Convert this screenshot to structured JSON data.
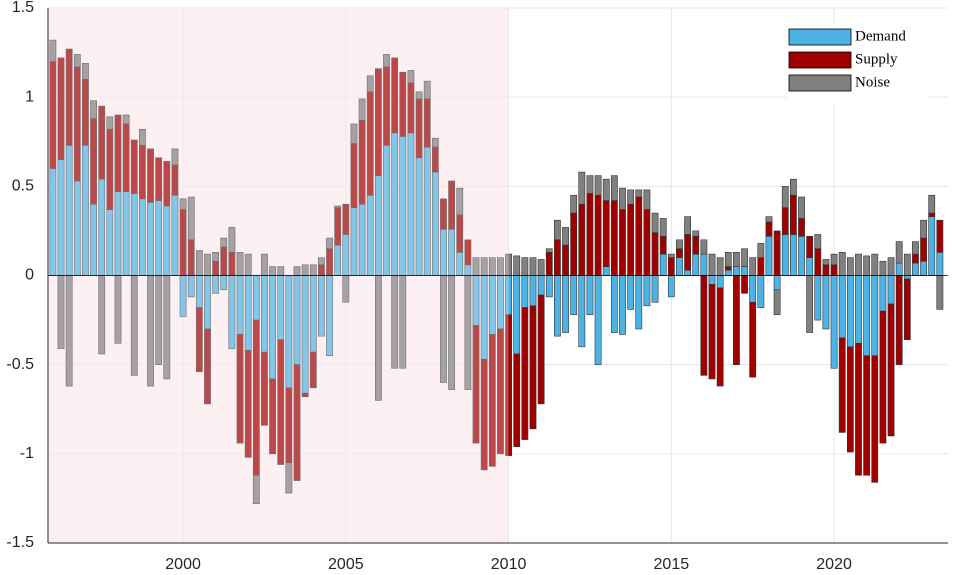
{
  "chart_data": {
    "type": "stacked_bar",
    "x": [
      1996,
      1996.25,
      1996.5,
      1996.75,
      1997,
      1997.25,
      1997.5,
      1997.75,
      1998,
      1998.25,
      1998.5,
      1998.75,
      1999,
      1999.25,
      1999.5,
      1999.75,
      2000,
      2000.25,
      2000.5,
      2000.75,
      2001,
      2001.25,
      2001.5,
      2001.75,
      2002,
      2002.25,
      2002.5,
      2002.75,
      2003,
      2003.25,
      2003.5,
      2003.75,
      2004,
      2004.25,
      2004.5,
      2004.75,
      2005,
      2005.25,
      2005.5,
      2005.75,
      2006,
      2006.25,
      2006.5,
      2006.75,
      2007,
      2007.25,
      2007.5,
      2007.75,
      2008,
      2008.25,
      2008.5,
      2008.75,
      2009,
      2009.25,
      2009.5,
      2009.75,
      2010,
      2010.25,
      2010.5,
      2010.75,
      2011,
      2011.25,
      2011.5,
      2011.75,
      2012,
      2012.25,
      2012.5,
      2012.75,
      2013,
      2013.25,
      2013.5,
      2013.75,
      2014,
      2014.25,
      2014.5,
      2014.75,
      2015,
      2015.25,
      2015.5,
      2015.75,
      2016,
      2016.25,
      2016.5,
      2016.75,
      2017,
      2017.25,
      2017.5,
      2017.75,
      2018,
      2018.25,
      2018.5,
      2018.75,
      2019,
      2019.25,
      2019.5,
      2019.75,
      2020,
      2020.25,
      2020.5,
      2020.75,
      2021,
      2021.25,
      2021.5,
      2021.75,
      2022,
      2022.25,
      2022.5,
      2022.75,
      2023,
      2023.25
    ],
    "series": [
      {
        "name": "Demand",
        "color": "#4db3e6",
        "values": [
          0.6,
          0.65,
          0.73,
          0.53,
          0.73,
          0.4,
          0.54,
          0.37,
          0.47,
          0.47,
          0.46,
          0.43,
          0.41,
          0.42,
          0.39,
          0.45,
          -0.23,
          -0.12,
          -0.18,
          -0.3,
          -0.1,
          -0.08,
          -0.41,
          -0.33,
          -0.42,
          -0.25,
          -0.43,
          -0.58,
          -0.36,
          -0.63,
          -0.5,
          -0.66,
          -0.43,
          -0.34,
          -0.45,
          0.17,
          0.23,
          0.38,
          0.4,
          0.45,
          0.56,
          0.73,
          0.8,
          0.78,
          0.8,
          0.66,
          0.72,
          0.58,
          0.26,
          0.26,
          0.13,
          0.06,
          -0.28,
          -0.47,
          -0.33,
          -0.3,
          -0.22,
          -0.44,
          -0.18,
          -0.17,
          -0.11,
          -0.12,
          -0.34,
          -0.32,
          -0.22,
          -0.4,
          -0.22,
          -0.5,
          0.05,
          -0.32,
          -0.33,
          -0.19,
          -0.3,
          -0.17,
          -0.15,
          0.12,
          -0.12,
          0.1,
          0.03,
          0.12,
          0.12,
          -0.05,
          -0.07,
          0.03,
          0.05,
          0.05,
          -0.15,
          -0.18,
          0.22,
          -0.08,
          0.23,
          0.23,
          0.22,
          0.1,
          -0.25,
          -0.3,
          -0.52,
          -0.35,
          -0.4,
          -0.38,
          -0.45,
          -0.45,
          -0.2,
          -0.16,
          0.07,
          -0.02,
          0.07,
          0.08,
          0.33,
          0.13
        ]
      },
      {
        "name": "Supply",
        "color": "#a00000",
        "values": [
          0.6,
          0.57,
          0.54,
          0.64,
          0.37,
          0.48,
          0.41,
          0.45,
          0.43,
          0.38,
          0.3,
          0.3,
          0.3,
          0.24,
          0.25,
          0.17,
          0.37,
          0.2,
          -0.36,
          -0.42,
          0.08,
          0.16,
          0.13,
          -0.61,
          -0.6,
          -0.87,
          -0.41,
          -0.42,
          -0.7,
          -0.42,
          -0.65,
          -0.02,
          -0.2,
          0.06,
          0.15,
          0.21,
          0.17,
          0.36,
          0.47,
          0.58,
          0.6,
          0.44,
          0.42,
          0.36,
          0.28,
          0.33,
          0.27,
          0.14,
          0.17,
          0.27,
          0.21,
          0.14,
          -0.66,
          -0.62,
          -0.74,
          -0.7,
          -0.79,
          -0.52,
          -0.74,
          -0.69,
          -0.61,
          0.13,
          0.2,
          0.17,
          0.35,
          0.4,
          0.46,
          0.45,
          0.37,
          0.42,
          0.37,
          0.4,
          0.44,
          0.37,
          0.24,
          0.1,
          0.1,
          0.05,
          0.2,
          0.1,
          -0.56,
          -0.53,
          -0.55,
          0.02,
          -0.5,
          -0.1,
          -0.42,
          0.1,
          0.08,
          0.25,
          0.15,
          0.22,
          0.1,
          0.12,
          0.15,
          0.06,
          0.06,
          -0.53,
          -0.59,
          -0.74,
          -0.67,
          -0.71,
          -0.74,
          -0.74,
          -0.5,
          -0.34,
          0.05,
          0.13,
          0.02,
          0.18
        ]
      },
      {
        "name": "Noise",
        "color": "#808080",
        "values": [
          0.12,
          -0.41,
          -0.62,
          0.07,
          0.09,
          0.1,
          -0.44,
          0.07,
          -0.38,
          0.05,
          -0.56,
          0.09,
          -0.62,
          -0.5,
          -0.58,
          0.09,
          0.06,
          0.24,
          0.14,
          0.12,
          0.05,
          0.05,
          0.14,
          0.13,
          0.12,
          -0.16,
          0.12,
          0.05,
          0.05,
          -0.17,
          0.05,
          0.06,
          0.06,
          0.04,
          0.06,
          0.01,
          -0.15,
          0.11,
          0.12,
          0.09,
          -0.7,
          0.07,
          -0.52,
          -0.52,
          0.07,
          0.04,
          0.1,
          0.05,
          -0.6,
          -0.64,
          0.15,
          -0.64,
          0.1,
          0.1,
          0.1,
          0.1,
          0.12,
          0.11,
          0.1,
          0.1,
          0.09,
          0.02,
          0.11,
          0.1,
          0.1,
          0.18,
          0.1,
          0.11,
          0.12,
          0.14,
          0.12,
          0.08,
          0.04,
          0.11,
          0.11,
          0.1,
          0.02,
          0.05,
          0.1,
          0.03,
          0.08,
          0.12,
          0.1,
          0.08,
          0.08,
          0.1,
          0.1,
          0.08,
          0.03,
          -0.14,
          0.12,
          0.09,
          0.12,
          -0.32,
          0.08,
          0.03,
          0.06,
          0.13,
          0.1,
          0.12,
          0.11,
          0.12,
          0.08,
          0.1,
          0.12,
          0.12,
          0.07,
          0.1,
          0.1,
          -0.19
        ]
      }
    ],
    "xlim": [
      1995.85,
      2023.5
    ],
    "xticks": [
      2000,
      2005,
      2010,
      2015,
      2020
    ],
    "ylim": [
      -1.5,
      1.5
    ],
    "yticks": [
      -1.5,
      -1,
      -0.5,
      0,
      0.5,
      1,
      1.5
    ],
    "grid": true,
    "legend": "upper right",
    "shaded_xlim": [
      1995.85,
      2010
    ]
  }
}
